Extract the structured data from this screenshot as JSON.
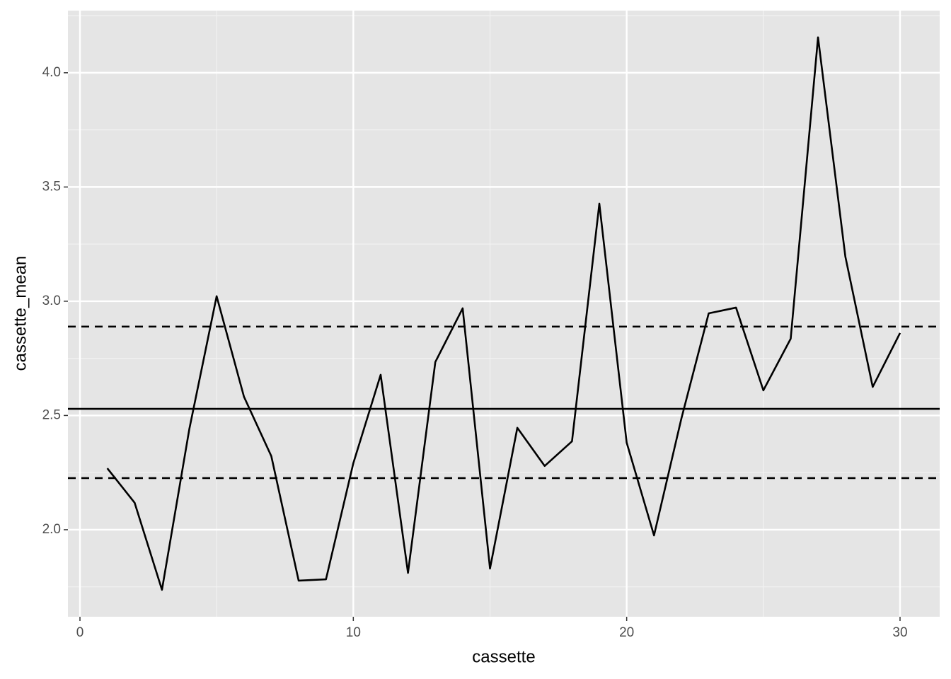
{
  "chart_data": {
    "type": "line",
    "x_label": "cassette",
    "y_label": "cassette_mean",
    "x": [
      1,
      2,
      3,
      4,
      5,
      6,
      7,
      8,
      9,
      10,
      11,
      12,
      13,
      14,
      15,
      16,
      17,
      18,
      19,
      20,
      21,
      22,
      23,
      24,
      25,
      26,
      27,
      28,
      29,
      30
    ],
    "series": [
      {
        "color": "#000000",
        "values": [
          2.269,
          2.118,
          1.737,
          2.44,
          3.022,
          2.582,
          2.322,
          1.777,
          1.783,
          2.291,
          2.678,
          1.811,
          2.734,
          2.969,
          1.83,
          2.446,
          2.279,
          2.387,
          3.427,
          2.381,
          1.975,
          2.486,
          2.947,
          2.972,
          2.61,
          2.836,
          4.155,
          3.195,
          2.625,
          2.861
        ]
      }
    ],
    "reference_lines": [
      {
        "value": 2.529,
        "style": "solid"
      },
      {
        "value": 2.889,
        "style": "dashed"
      },
      {
        "value": 2.226,
        "style": "dashed"
      }
    ],
    "xlim": [
      -0.44,
      31.45
    ],
    "ylim": [
      1.619,
      4.272
    ],
    "xticks": [
      0,
      10,
      20,
      30
    ],
    "yticks": [
      {
        "value": 2.0,
        "label": "2.0"
      },
      {
        "value": 2.5,
        "label": "2.5"
      },
      {
        "value": 3.0,
        "label": "3.0"
      },
      {
        "value": 3.5,
        "label": "3.5"
      },
      {
        "value": 4.0,
        "label": "4.0"
      }
    ],
    "x_minor_ticks": [
      5,
      15,
      25
    ],
    "y_minor_ticks": [
      1.75,
      2.25,
      2.75,
      3.25,
      3.75,
      4.25
    ],
    "grid": true
  }
}
